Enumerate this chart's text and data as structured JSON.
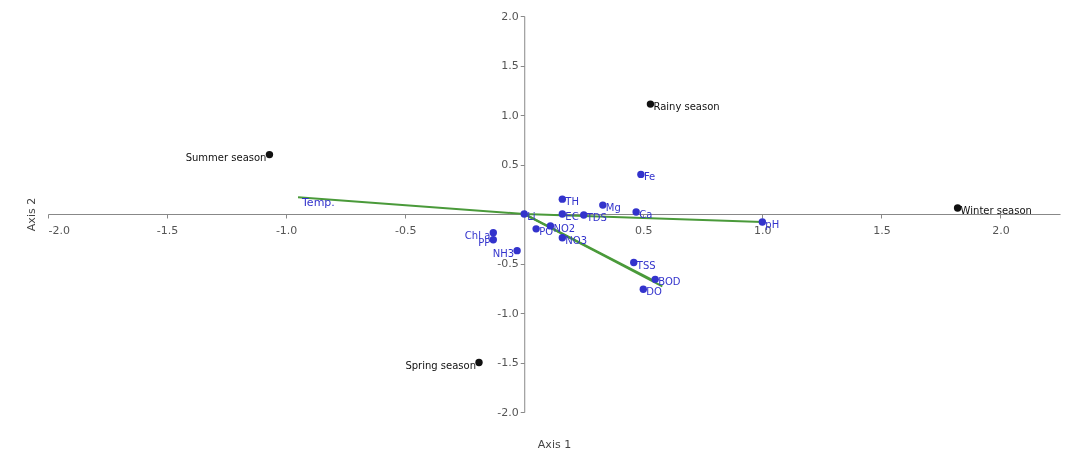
{
  "chart_data": {
    "type": "scatter",
    "xlabel": "Axis 1",
    "ylabel": "Axis 2",
    "xlim": [
      -2.0,
      2.25
    ],
    "ylim": [
      -2.0,
      2.0
    ],
    "xticks": [
      {
        "value": -2,
        "label": "-2.0"
      },
      {
        "value": -1.5,
        "label": "-1.5"
      },
      {
        "value": -1,
        "label": "-1.0"
      },
      {
        "value": -0.5,
        "label": "-0.5"
      },
      {
        "value": 0.5,
        "label": "0.5"
      },
      {
        "value": 1,
        "label": "1.0"
      },
      {
        "value": 1.5,
        "label": "1.5"
      },
      {
        "value": 2,
        "label": "2.0"
      }
    ],
    "yticks": [
      {
        "value": 2,
        "label": "2.0"
      },
      {
        "value": 1.5,
        "label": "1.5"
      },
      {
        "value": 1,
        "label": "1.0"
      },
      {
        "value": 0.5,
        "label": "0.5"
      },
      {
        "value": -0.5,
        "label": "-0.5"
      },
      {
        "value": -1,
        "label": "-1.0"
      },
      {
        "value": -1.5,
        "label": "-1.5"
      },
      {
        "value": -2,
        "label": "-2.0"
      }
    ],
    "marker": "circle",
    "grid": false,
    "series": [
      {
        "type": "line",
        "marker": "none",
        "color": "#4a9a3a",
        "x": [
          -0.95,
          0,
          1.0
        ],
        "values": [
          0.17,
          0,
          -0.08
        ]
      },
      {
        "type": "line",
        "marker": "none",
        "color": "#4a9a3a",
        "x": [
          0,
          0.55
        ],
        "values": [
          0,
          -0.68
        ]
      },
      {
        "type": "line",
        "marker": "none",
        "color": "#4a9a3a",
        "x": [
          0,
          0.58
        ],
        "values": [
          0,
          -0.73
        ]
      },
      {
        "color": "#111111",
        "x": [
          0.53,
          -1.07,
          1.82,
          -0.19
        ],
        "values": [
          1.11,
          0.6,
          0.06,
          -1.5
        ],
        "value_labels": [
          "Rainy season",
          "Summer season",
          "Winter season",
          "Spring season"
        ]
      },
      {
        "color": "#3333cc",
        "x": [
          0.49,
          0.16,
          0.33,
          0.47,
          0.25,
          0.16,
          0.0,
          0.11,
          0.05,
          0.16,
          -0.13,
          -0.13,
          -0.03,
          0.46,
          0.55,
          0.5,
          1.0
        ],
        "values": [
          0.4,
          0.15,
          0.09,
          0.02,
          -0.01,
          0.0,
          0.0,
          -0.12,
          -0.15,
          -0.24,
          -0.19,
          -0.26,
          -0.37,
          -0.49,
          -0.66,
          -0.76,
          -0.08
        ],
        "value_labels": [
          "Fe",
          "TH",
          "Mg",
          "Ca",
          "TDS",
          "EC",
          "Li",
          "NO2",
          "PO",
          "NO3",
          "Chl a",
          "PP",
          "NH3",
          "TSS",
          "BOD",
          "DO",
          "pH"
        ]
      }
    ],
    "annotations": [
      {
        "text": "Temp.",
        "x": -0.95,
        "y": 0.17
      }
    ]
  }
}
